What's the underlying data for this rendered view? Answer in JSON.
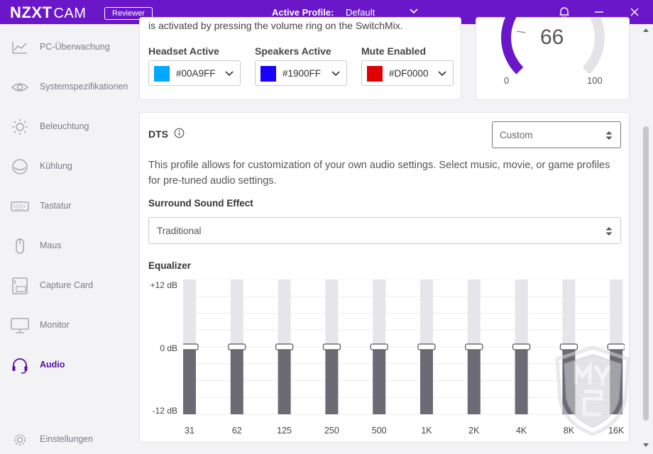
{
  "app": {
    "logo": "NZXT",
    "logo_suffix": "CAM",
    "badge": "Reviewer",
    "profile_label": "Active Profile:",
    "profile_value": "Default",
    "accent_color": "#6a16c9"
  },
  "sidebar": {
    "items": [
      {
        "label": "PC-Überwachung",
        "icon": "monitoring-chart-icon"
      },
      {
        "label": "Systemspezifikationen",
        "icon": "eye-icon"
      },
      {
        "label": "Beleuchtung",
        "icon": "sun-icon"
      },
      {
        "label": "Kühlung",
        "icon": "fan-icon"
      },
      {
        "label": "Tastatur",
        "icon": "keyboard-icon"
      },
      {
        "label": "Maus",
        "icon": "mouse-icon"
      },
      {
        "label": "Capture Card",
        "icon": "capture-card-icon"
      },
      {
        "label": "Monitor",
        "icon": "monitor-icon"
      },
      {
        "label": "Audio",
        "icon": "headset-icon",
        "active": true
      }
    ],
    "settings_label": "Einstellungen"
  },
  "colors_card": {
    "intro_text": "is activated by pressing the volume ring on the SwitchMix.",
    "pickers": [
      {
        "title": "Headset Active",
        "hex": "#00A9FF",
        "color": "#00A9FF"
      },
      {
        "title": "Speakers Active",
        "hex": "#1900FF",
        "color": "#1900FF"
      },
      {
        "title": "Mute Enabled",
        "hex": "#DF0000",
        "color": "#DF0000"
      }
    ]
  },
  "gauge": {
    "value": "66",
    "min": "0",
    "max": "100",
    "fraction": 0.66,
    "color": "#6a16c9"
  },
  "dts": {
    "title": "DTS",
    "preset": "Custom",
    "description": "This profile allows for customization of your own audio settings. Select music, movie, or game profiles for pre-tuned audio settings.",
    "surround_title": "Surround Sound Effect",
    "surround_value": "Traditional"
  },
  "equalizer": {
    "title": "Equalizer",
    "y_top": "+12 dB",
    "y_mid": "0 dB",
    "y_bottom": "-12 dB",
    "range_db": [
      -12,
      12
    ],
    "bands": [
      {
        "label": "31",
        "db": 0
      },
      {
        "label": "62",
        "db": 0
      },
      {
        "label": "125",
        "db": 0
      },
      {
        "label": "250",
        "db": 0
      },
      {
        "label": "500",
        "db": 0
      },
      {
        "label": "1K",
        "db": 0
      },
      {
        "label": "2K",
        "db": 0
      },
      {
        "label": "4K",
        "db": 0
      },
      {
        "label": "8K",
        "db": 0
      },
      {
        "label": "16K",
        "db": 0
      }
    ]
  }
}
